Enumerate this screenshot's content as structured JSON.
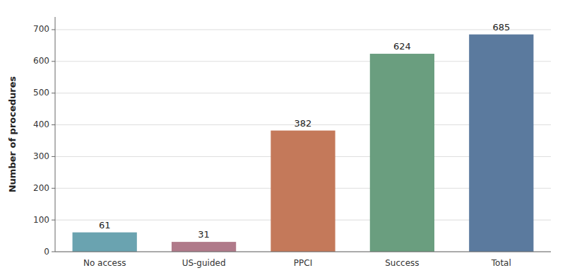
{
  "chart_data": {
    "type": "bar",
    "categories": [
      "No access",
      "US-guided",
      "PPCI",
      "Success",
      "Total"
    ],
    "values": [
      61,
      31,
      382,
      624,
      685
    ],
    "colors": [
      "#6aa3b0",
      "#b07a8a",
      "#c4795a",
      "#6a9e7f",
      "#5b7a9e"
    ],
    "ylabel": "Number of procedures",
    "ylim": [
      0,
      740
    ],
    "yticks": [
      0,
      100,
      200,
      300,
      400,
      500,
      600,
      700
    ],
    "grid": true,
    "data_labels": true
  }
}
